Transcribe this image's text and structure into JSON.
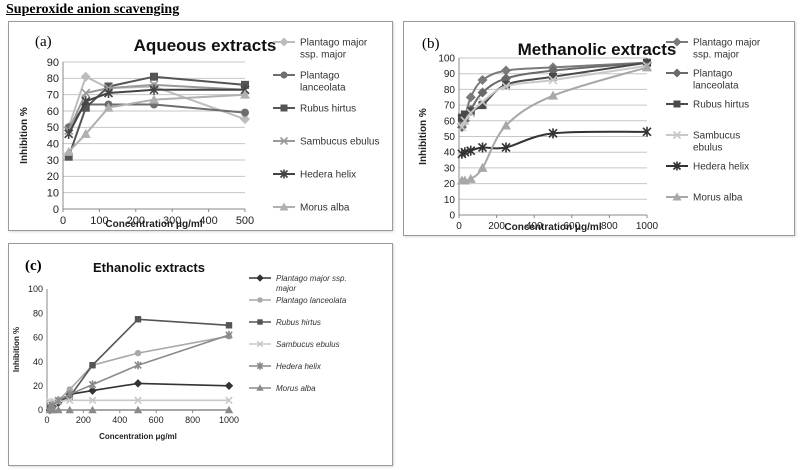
{
  "page": {
    "title": "Superoxide anion scavenging"
  },
  "chart_data": [
    {
      "id": "a",
      "panel_label": "(a)",
      "type": "line",
      "title": "Aqueous extracts",
      "xlabel": "Concentration μg/ml",
      "ylabel": "Inhibition %",
      "xlim": [
        0,
        500
      ],
      "ylim": [
        0,
        90
      ],
      "xticks": [
        0,
        100,
        200,
        300,
        400,
        500
      ],
      "yticks": [
        0,
        10,
        20,
        30,
        40,
        50,
        60,
        70,
        80,
        90
      ],
      "x": [
        15.6,
        62.5,
        125,
        250,
        500
      ],
      "grid": true,
      "legend": "right",
      "series": [
        {
          "name": "Plantago major ssp. major",
          "color": "#bdbdbd",
          "marker": "diamond",
          "values": [
            50,
            81,
            74,
            75,
            55
          ]
        },
        {
          "name": "Plantago lanceolata",
          "color": "#6e6e6e",
          "marker": "circle",
          "values": [
            50,
            64,
            64,
            64,
            59
          ]
        },
        {
          "name": "Rubus hirtus",
          "color": "#555555",
          "marker": "square",
          "values": [
            32,
            62,
            75,
            81,
            76
          ]
        },
        {
          "name": "Sambucus ebulus",
          "color": "#9a9a9a",
          "marker": "x",
          "values": [
            48,
            71,
            74,
            76,
            73
          ]
        },
        {
          "name": "Hedera helix",
          "color": "#444444",
          "marker": "star",
          "values": [
            46,
            66,
            71,
            73,
            73
          ]
        },
        {
          "name": "Morus alba",
          "color": "#b0b0b0",
          "marker": "triangle",
          "values": [
            35,
            46,
            62,
            67,
            70
          ]
        }
      ]
    },
    {
      "id": "b",
      "panel_label": "(b)",
      "type": "line",
      "title": "Methanolic extracts",
      "xlabel": "Concentration μg/ml",
      "ylabel": "Inhibition %",
      "xlim": [
        0,
        1000
      ],
      "ylim": [
        0,
        100
      ],
      "xticks": [
        0,
        200,
        400,
        600,
        800,
        1000
      ],
      "yticks": [
        0,
        10,
        20,
        30,
        40,
        50,
        60,
        70,
        80,
        90,
        100
      ],
      "x": [
        15.6,
        31.25,
        62.5,
        125,
        250,
        500,
        1000
      ],
      "grid": true,
      "legend": "right",
      "series": [
        {
          "name": "Plantago major ssp. major",
          "color": "#7a7a7a",
          "marker": "diamond",
          "values": [
            58,
            62,
            75,
            86,
            92,
            94,
            97
          ]
        },
        {
          "name": "Plantago lanceolata",
          "color": "#6a6a6a",
          "marker": "diamond",
          "values": [
            56,
            60,
            67,
            78,
            87,
            92,
            97
          ]
        },
        {
          "name": "Rubus hirtus",
          "color": "#4a4a4a",
          "marker": "square",
          "values": [
            62,
            64,
            66,
            70,
            83,
            88,
            97
          ]
        },
        {
          "name": "Sambucus ebulus",
          "color": "#c8c8c8",
          "marker": "x",
          "values": [
            56,
            60,
            65,
            72,
            82,
            86,
            95
          ]
        },
        {
          "name": "Hedera helix",
          "color": "#333333",
          "marker": "star",
          "values": [
            39,
            40,
            41,
            43,
            43,
            52,
            53
          ]
        },
        {
          "name": "Morus alba",
          "color": "#a8a8a8",
          "marker": "triangle",
          "values": [
            22,
            22,
            23,
            30,
            57,
            76,
            94
          ]
        }
      ]
    },
    {
      "id": "c",
      "panel_label": "(c)",
      "type": "line",
      "title": "Ethanolic extracts",
      "xlabel": "Concentration μg/ml",
      "ylabel": "Inhibition %",
      "xlim": [
        0,
        1000
      ],
      "ylim": [
        0,
        100
      ],
      "xticks": [
        0,
        200,
        400,
        600,
        800,
        1000
      ],
      "yticks": [
        0,
        20,
        40,
        60,
        80,
        100
      ],
      "x": [
        15.6,
        31.25,
        62.5,
        125,
        250,
        500,
        1000
      ],
      "grid": false,
      "legend": "right",
      "series": [
        {
          "name": "Plantago major ssp. major",
          "color": "#333333",
          "marker": "diamond",
          "values": [
            0,
            3,
            6,
            13,
            16,
            22,
            20
          ]
        },
        {
          "name": "Plantago lanceolata",
          "color": "#a8a8a8",
          "marker": "circle",
          "values": [
            1,
            4,
            8,
            17,
            37,
            47,
            61
          ]
        },
        {
          "name": "Rubus hirtus",
          "color": "#555555",
          "marker": "square",
          "values": [
            2,
            4,
            7,
            11,
            37,
            75,
            70
          ]
        },
        {
          "name": "Sambucus ebulus",
          "color": "#c8c8c8",
          "marker": "x",
          "values": [
            7,
            7,
            7,
            8,
            8,
            8,
            8
          ]
        },
        {
          "name": "Hedera helix",
          "color": "#8a8a8a",
          "marker": "star",
          "values": [
            3,
            4,
            8,
            13,
            21,
            37,
            62
          ]
        },
        {
          "name": "Morus alba",
          "color": "#8a8a8a",
          "marker": "triangle",
          "values": [
            0,
            0,
            0,
            0,
            0,
            0,
            0
          ]
        }
      ]
    }
  ]
}
